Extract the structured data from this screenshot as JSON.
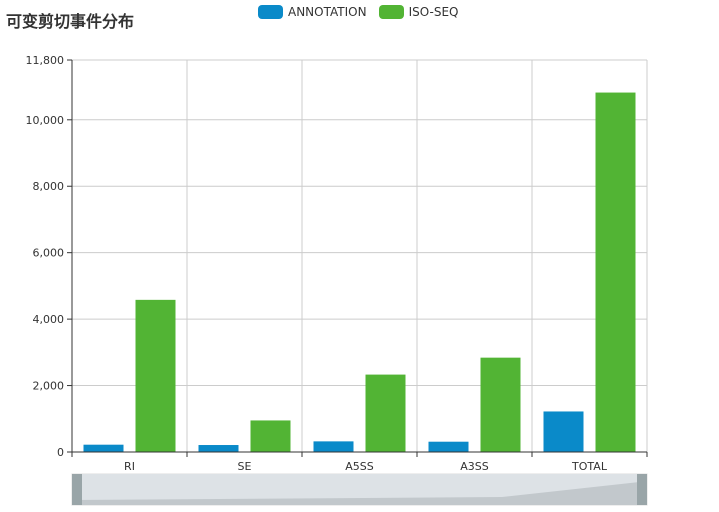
{
  "chart_data": {
    "type": "bar",
    "title": "可变剪切事件分布",
    "categories": [
      "RI",
      "SE",
      "A5SS",
      "A3SS",
      "TOTAL"
    ],
    "series": [
      {
        "name": "ANNOTATION",
        "color": "#0a8ac9",
        "values": [
          220,
          210,
          320,
          310,
          1220
        ]
      },
      {
        "name": "ISO-SEQ",
        "color": "#52b434",
        "values": [
          4580,
          950,
          2330,
          2840,
          10820
        ]
      }
    ],
    "xlabel": "",
    "ylabel": "",
    "ylim": [
      0,
      11800
    ],
    "yticks": [
      0,
      2000,
      4000,
      6000,
      8000,
      10000,
      11800
    ],
    "ytick_labels": [
      "0",
      "2,000",
      "4,000",
      "6,000",
      "8,000",
      "10,000",
      "11,800"
    ],
    "grid": true,
    "legend_position": "top-center",
    "data_zoom": {
      "start": 0,
      "end": 1
    }
  }
}
